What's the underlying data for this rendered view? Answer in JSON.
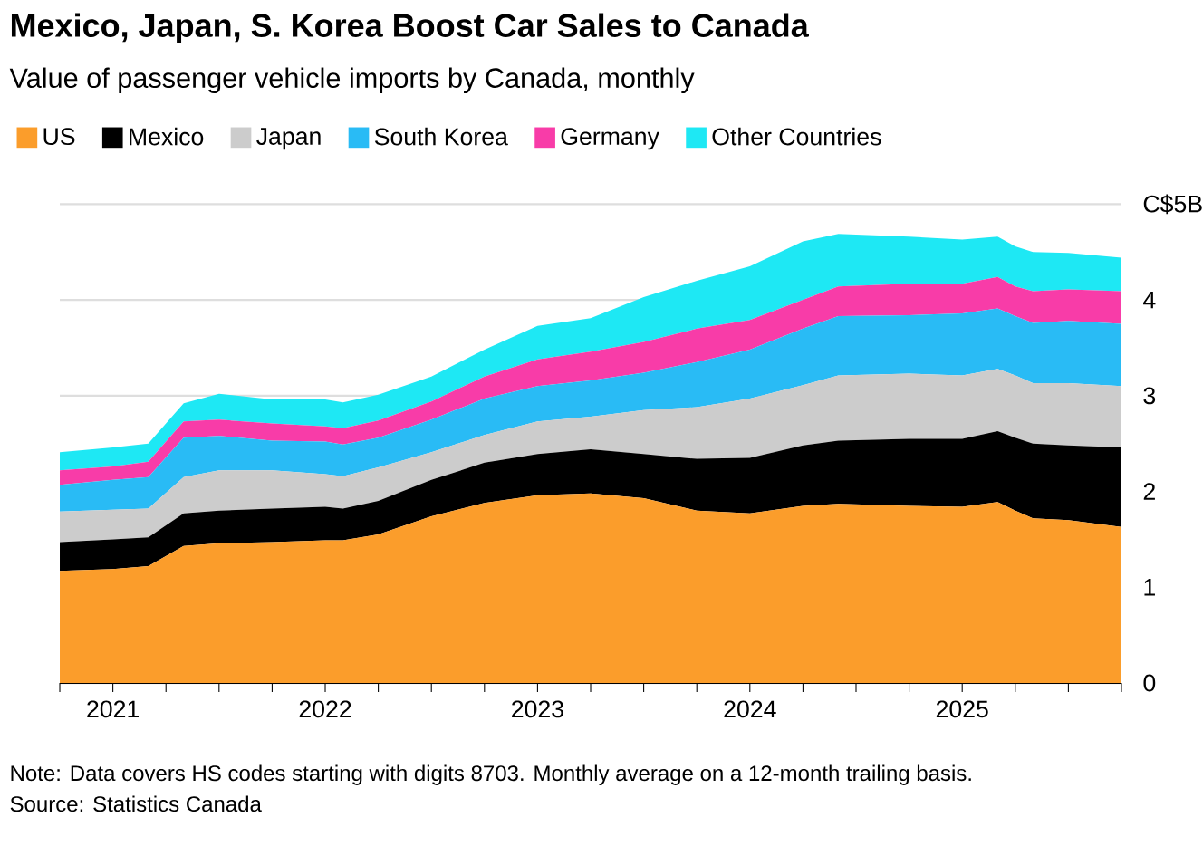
{
  "chart_data": {
    "type": "area",
    "stacked": true,
    "title": "Mexico, Japan, S. Korea Boost Car Sales to Canada",
    "subtitle": "Value of passenger vehicle imports by Canada, monthly",
    "x": [
      "2020-10",
      "2021-01",
      "2021-03",
      "2021-05",
      "2021-07",
      "2021-10",
      "2022-01",
      "2022-02",
      "2022-04",
      "2022-07",
      "2022-10",
      "2023-01",
      "2023-04",
      "2023-07",
      "2023-10",
      "2024-01",
      "2024-04",
      "2024-06",
      "2024-10",
      "2025-01",
      "2025-03",
      "2025-04",
      "2025-05",
      "2025-07",
      "2025-10"
    ],
    "series": [
      {
        "name": "US",
        "color": "#fb9d2b",
        "values": [
          1.17,
          1.19,
          1.22,
          1.43,
          1.46,
          1.47,
          1.49,
          1.49,
          1.55,
          1.74,
          1.88,
          1.96,
          1.98,
          1.93,
          1.8,
          1.77,
          1.85,
          1.87,
          1.85,
          1.84,
          1.89,
          1.8,
          1.72,
          1.7,
          1.63
        ]
      },
      {
        "name": "Mexico",
        "color": "#000000",
        "values": [
          0.3,
          0.31,
          0.3,
          0.34,
          0.34,
          0.35,
          0.35,
          0.33,
          0.35,
          0.38,
          0.42,
          0.43,
          0.46,
          0.46,
          0.54,
          0.58,
          0.63,
          0.66,
          0.7,
          0.71,
          0.74,
          0.76,
          0.78,
          0.78,
          0.83
        ]
      },
      {
        "name": "Japan",
        "color": "#cccccc",
        "values": [
          0.32,
          0.31,
          0.3,
          0.38,
          0.42,
          0.4,
          0.34,
          0.34,
          0.35,
          0.29,
          0.29,
          0.34,
          0.34,
          0.46,
          0.54,
          0.62,
          0.63,
          0.68,
          0.68,
          0.66,
          0.65,
          0.65,
          0.63,
          0.65,
          0.64
        ]
      },
      {
        "name": "South Korea",
        "color": "#29bbf5",
        "values": [
          0.28,
          0.31,
          0.33,
          0.41,
          0.36,
          0.31,
          0.34,
          0.33,
          0.31,
          0.34,
          0.38,
          0.37,
          0.38,
          0.39,
          0.47,
          0.51,
          0.59,
          0.62,
          0.61,
          0.65,
          0.63,
          0.62,
          0.63,
          0.65,
          0.65
        ]
      },
      {
        "name": "Germany",
        "color": "#f83ca8",
        "values": [
          0.15,
          0.14,
          0.16,
          0.17,
          0.17,
          0.18,
          0.16,
          0.17,
          0.18,
          0.19,
          0.23,
          0.28,
          0.3,
          0.32,
          0.35,
          0.31,
          0.3,
          0.31,
          0.33,
          0.31,
          0.33,
          0.31,
          0.33,
          0.33,
          0.34
        ]
      },
      {
        "name": "Other Countries",
        "color": "#1ee8f4",
        "values": [
          0.19,
          0.2,
          0.19,
          0.19,
          0.27,
          0.25,
          0.28,
          0.27,
          0.27,
          0.26,
          0.28,
          0.35,
          0.35,
          0.47,
          0.5,
          0.56,
          0.61,
          0.55,
          0.49,
          0.46,
          0.42,
          0.42,
          0.41,
          0.38,
          0.35
        ]
      }
    ],
    "xlim": [
      "2020-10",
      "2025-10"
    ],
    "xticks": [
      {
        "value": "2020-10",
        "label": null
      },
      {
        "value": "2021-01",
        "label": "2021"
      },
      {
        "value": "2021-04",
        "label": null
      },
      {
        "value": "2021-07",
        "label": null
      },
      {
        "value": "2021-10",
        "label": null
      },
      {
        "value": "2022-01",
        "label": "2022"
      },
      {
        "value": "2022-04",
        "label": null
      },
      {
        "value": "2022-07",
        "label": null
      },
      {
        "value": "2022-10",
        "label": null
      },
      {
        "value": "2023-01",
        "label": "2023"
      },
      {
        "value": "2023-04",
        "label": null
      },
      {
        "value": "2023-07",
        "label": null
      },
      {
        "value": "2023-10",
        "label": null
      },
      {
        "value": "2024-01",
        "label": "2024"
      },
      {
        "value": "2024-04",
        "label": null
      },
      {
        "value": "2024-07",
        "label": null
      },
      {
        "value": "2024-10",
        "label": null
      },
      {
        "value": "2025-01",
        "label": "2025"
      },
      {
        "value": "2025-04",
        "label": null
      },
      {
        "value": "2025-07",
        "label": null
      },
      {
        "value": "2025-10",
        "label": null
      }
    ],
    "ylim": [
      0,
      5
    ],
    "yticks": [
      0,
      1,
      2,
      3,
      4,
      {
        "value": 5,
        "label": "C$5B"
      }
    ],
    "grid": "y",
    "legend": "top",
    "annotations": [
      "Note: Data covers HS codes starting with digits 8703. Monthly average on a 12-month trailing basis.",
      "Source: Statistics Canada"
    ]
  }
}
